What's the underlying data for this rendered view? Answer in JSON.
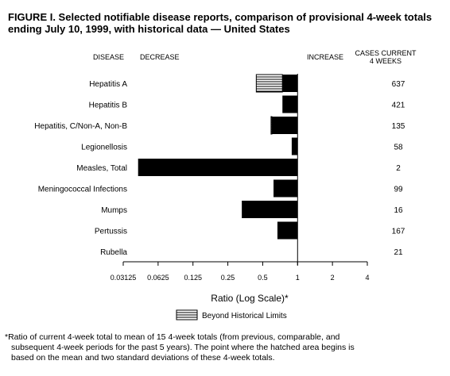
{
  "title_line1": "FIGURE I. Selected notifiable disease reports, comparison of provisional 4-week totals",
  "title_line2": "ending July 10, 1999, with historical data — United States",
  "header": {
    "disease": "DISEASE",
    "decrease": "DECREASE",
    "increase": "INCREASE",
    "cases_line1": "CASES CURRENT",
    "cases_line2": "4 WEEKS"
  },
  "legend_label": "Beyond Historical Limits",
  "footnote_line1": "*Ratio of current 4-week total to mean of 15 4-week totals (from previous, comparable, and",
  "footnote_line2": "subsequent 4-week periods for the past 5 years). The point where the hatched area begins is",
  "footnote_line3": "based on the mean and two standard deviations of these 4-week totals.",
  "chart_data": {
    "type": "bar",
    "orientation": "horizontal",
    "xlabel": "Ratio (Log Scale)*",
    "x_scale": "log2",
    "xlim": [
      0.03125,
      4
    ],
    "x_ticks": [
      0.03125,
      0.0625,
      0.125,
      0.25,
      0.5,
      1,
      2,
      4
    ],
    "x_tick_labels": [
      "0.03125",
      "0.0625",
      "0.125",
      "0.25",
      "0.5",
      "1",
      "2",
      "4"
    ],
    "baseline": 1,
    "categories": [
      "Hepatitis A",
      "Hepatitis B",
      "Hepatitis, C/Non-A, Non-B",
      "Legionellosis",
      "Measles, Total",
      "Meningococcal Infections",
      "Mumps",
      "Pertussis",
      "Rubella"
    ],
    "ratios": [
      0.44,
      0.74,
      0.59,
      0.89,
      0.042,
      0.62,
      0.33,
      0.67,
      1.0
    ],
    "historical_limit": [
      0.74,
      null,
      0.6,
      null,
      null,
      null,
      null,
      null,
      null
    ],
    "cases_current_4_weeks": [
      637,
      421,
      135,
      58,
      2,
      99,
      16,
      167,
      21
    ],
    "colors": {
      "bar": "#000000",
      "hatch_line": "#000000",
      "hatch_bg": "#ffffff"
    },
    "legend": {
      "hatched": "Beyond Historical Limits"
    }
  }
}
